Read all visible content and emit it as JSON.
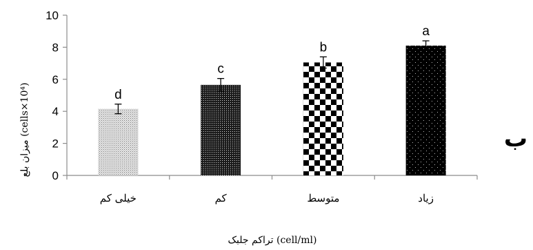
{
  "panel_label": "ب",
  "chart_data": {
    "type": "bar",
    "categories": [
      "خیلی کم",
      "کم",
      "متوسط",
      "زیاد"
    ],
    "values": [
      4.15,
      5.65,
      7.05,
      8.1
    ],
    "errors": [
      0.3,
      0.4,
      0.35,
      0.3
    ],
    "significance_letters": [
      "d",
      "c",
      "b",
      "a"
    ],
    "patterns": [
      "fine-dots",
      "dense-dots",
      "checker",
      "sparse-dots"
    ],
    "xlabel": "تراکم جلبک (cell/ml)",
    "ylabel": "میزان بلع (cells×10⁴)",
    "ylim": [
      0,
      10
    ],
    "yticks": [
      0,
      2,
      4,
      6,
      8,
      10
    ],
    "grid": false,
    "legend": "none"
  }
}
